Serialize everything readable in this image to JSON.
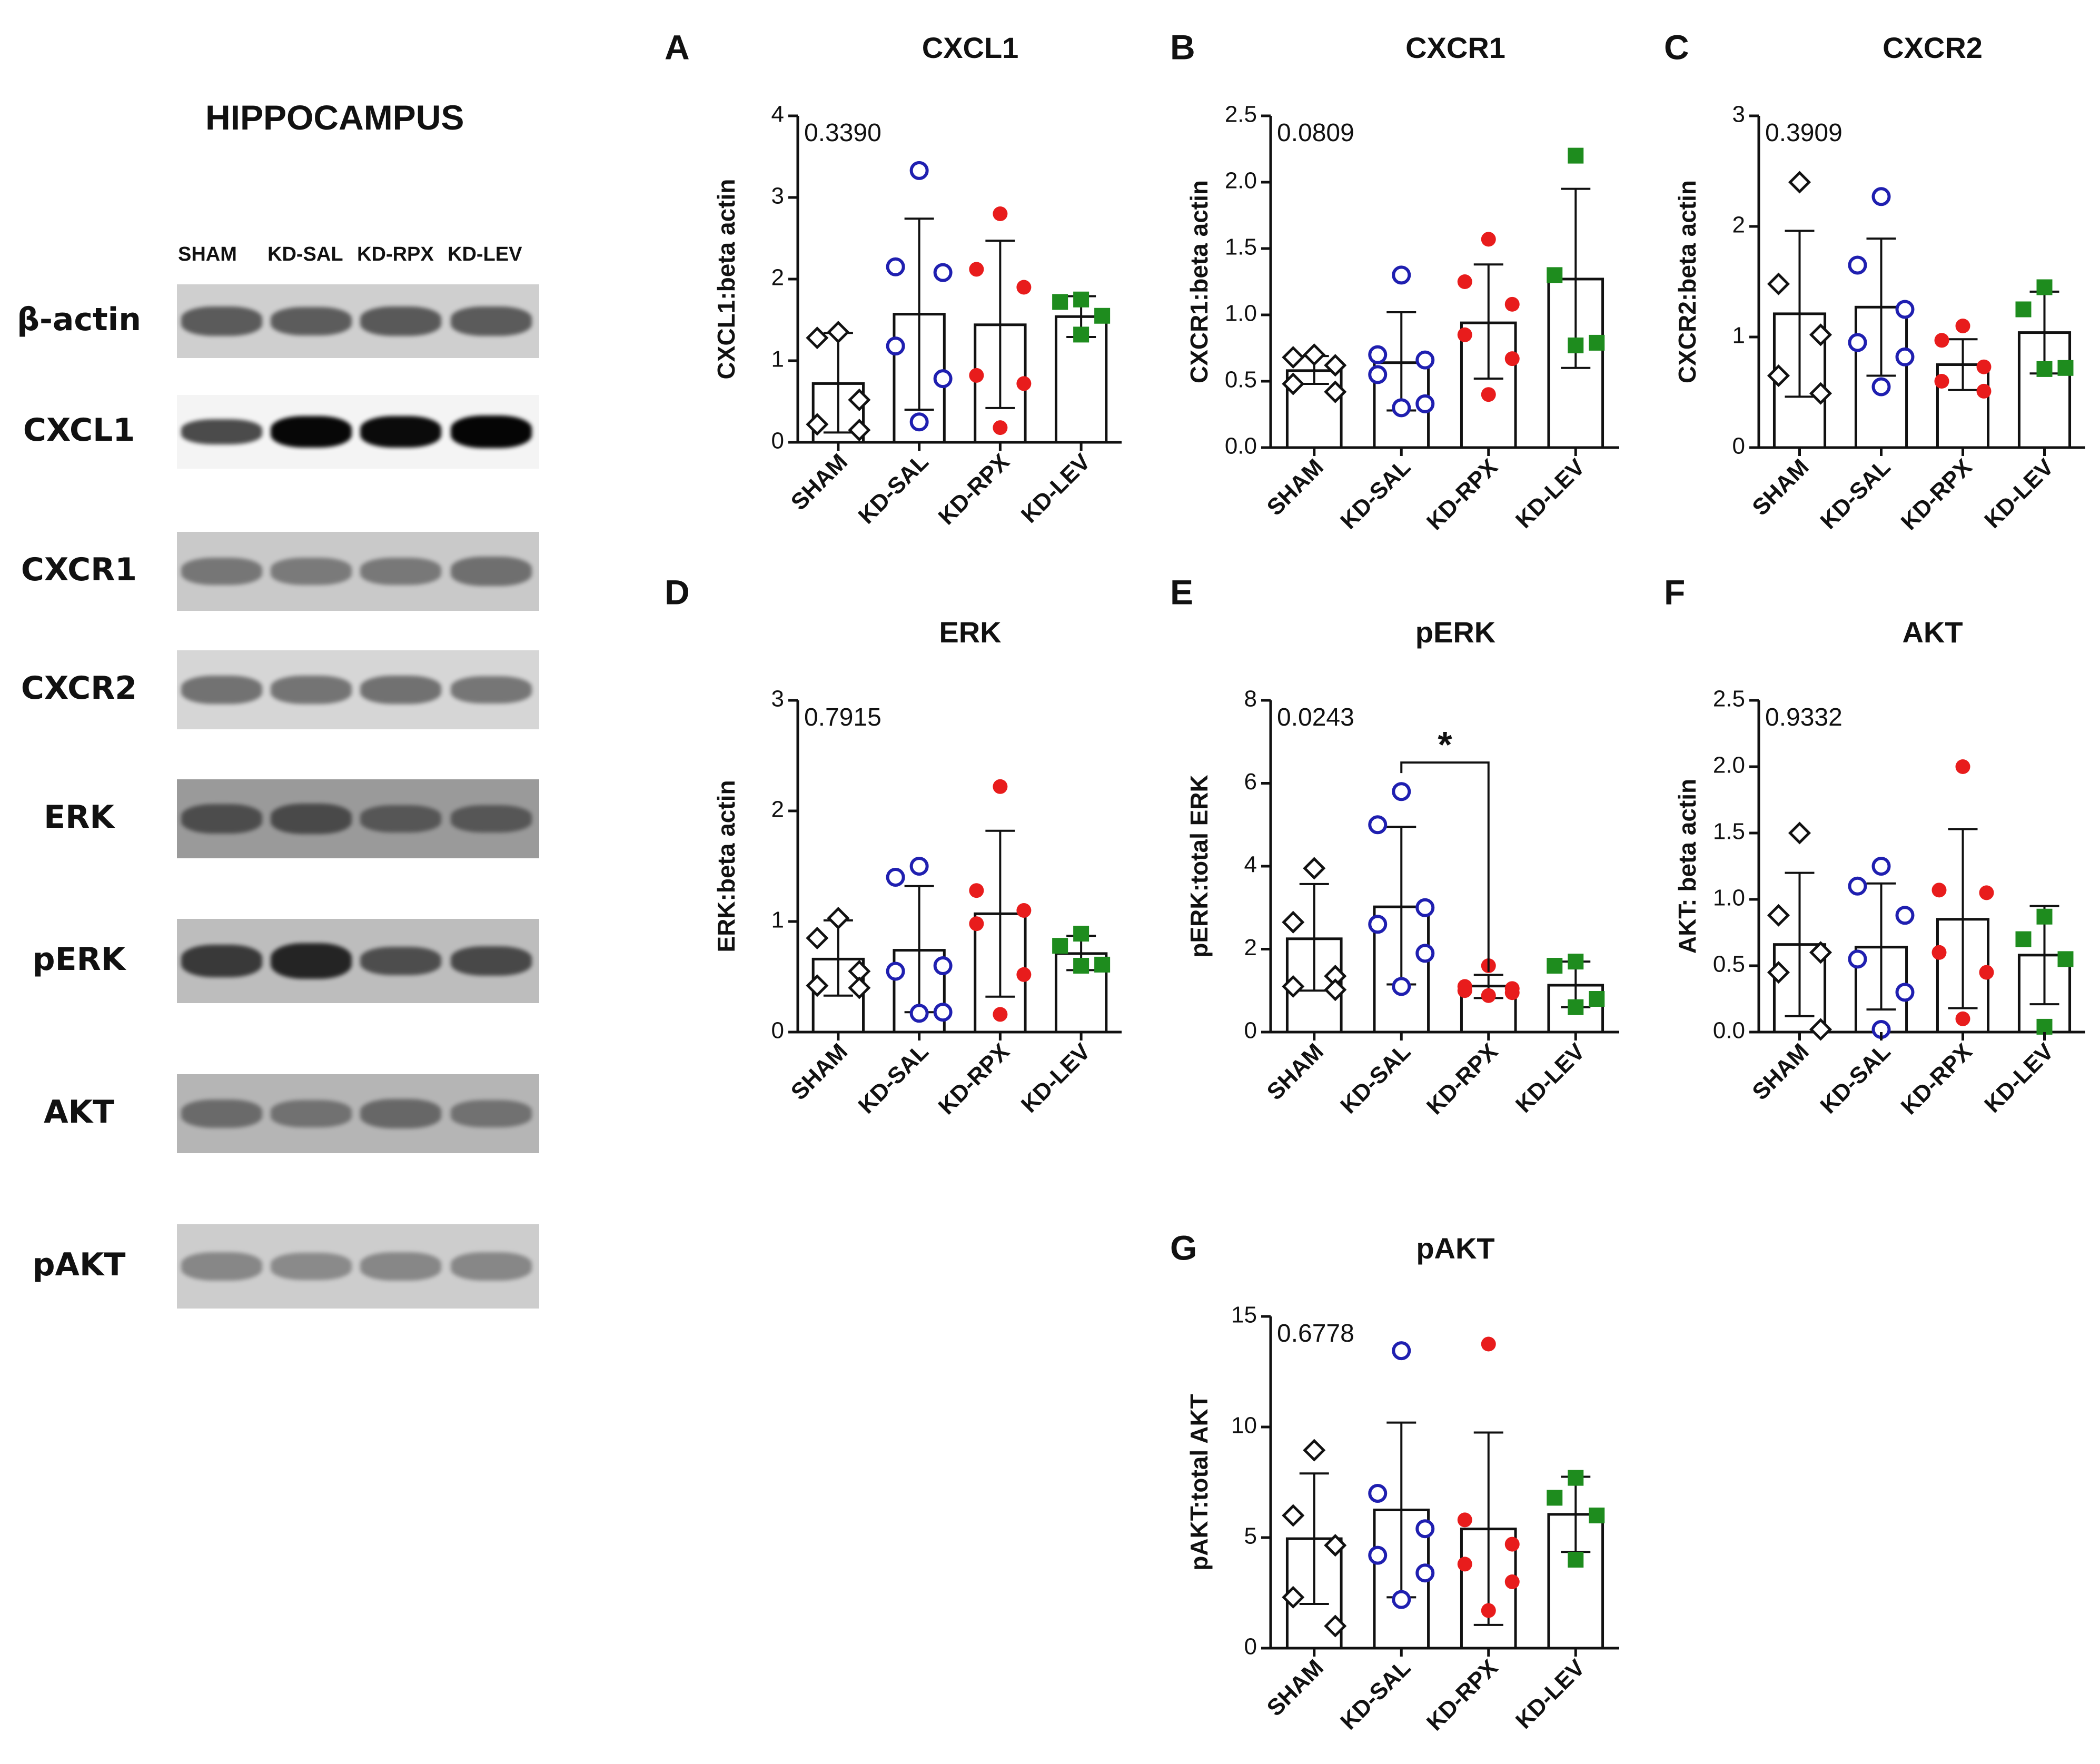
{
  "western_blot": {
    "title": "HIPPOCAMPUS",
    "lanes": [
      "SHAM",
      "KD-SAL",
      "KD-RPX",
      "KD-LEV"
    ],
    "proteins": [
      {
        "label": "β-actin",
        "bg": "#cfcfcf",
        "band_color": "#4a4a4a",
        "band_intensity": [
          0.8,
          0.78,
          0.82,
          0.8
        ]
      },
      {
        "label": "CXCL1",
        "bg": "#f4f4f4",
        "band_color": "#050505",
        "band_intensity": [
          0.55,
          0.98,
          0.96,
          1.0
        ]
      },
      {
        "label": "CXCR1",
        "bg": "#c9c9c9",
        "band_color": "#5a5a5a",
        "band_intensity": [
          0.6,
          0.55,
          0.58,
          0.7
        ]
      },
      {
        "label": "CXCR2",
        "bg": "#d6d6d6",
        "band_color": "#555555",
        "band_intensity": [
          0.65,
          0.62,
          0.66,
          0.6
        ]
      },
      {
        "label": "ERK",
        "bg": "#9a9a9a",
        "band_color": "#3a3a3a",
        "band_intensity": [
          0.7,
          0.75,
          0.55,
          0.55
        ]
      },
      {
        "label": "pERK",
        "bg": "#bdbdbd",
        "band_color": "#202020",
        "band_intensity": [
          0.75,
          0.95,
          0.55,
          0.6
        ]
      },
      {
        "label": "AKT",
        "bg": "#b5b5b5",
        "band_color": "#555555",
        "band_intensity": [
          0.65,
          0.55,
          0.7,
          0.55
        ]
      },
      {
        "label": "pAKT",
        "bg": "#cdcdcd",
        "band_color": "#6a6a6a",
        "band_intensity": [
          0.55,
          0.5,
          0.55,
          0.55
        ]
      }
    ]
  },
  "colors": {
    "SHAM": "#111111",
    "KD-SAL": "#1f1fb0",
    "KD-RPX": "#e81c1c",
    "KD-LEV": "#1e8c1e"
  },
  "chart_data": [
    {
      "panel": "A",
      "type": "bar",
      "title": "CXCL1",
      "ylabel": "CXCL1:beta actin",
      "ylim": [
        0,
        4
      ],
      "yticks": [
        "0",
        "1",
        "2",
        "3",
        "4"
      ],
      "pvalue": "0.3390",
      "categories": [
        "SHAM",
        "KD-SAL",
        "KD-RPX",
        "KD-LEV"
      ],
      "means": [
        0.72,
        1.57,
        1.44,
        1.54
      ],
      "sd_low": [
        0.12,
        0.4,
        0.42,
        1.29
      ],
      "sd_high": [
        1.34,
        2.74,
        2.47,
        1.79
      ],
      "points": [
        [
          1.35,
          1.28,
          0.52,
          0.22,
          0.15
        ],
        [
          3.33,
          2.15,
          2.08,
          1.18,
          0.78,
          0.25
        ],
        [
          2.8,
          2.12,
          1.9,
          0.82,
          0.72,
          0.18
        ],
        [
          1.75,
          1.72,
          1.55,
          1.32
        ]
      ],
      "significance": null
    },
    {
      "panel": "B",
      "type": "bar",
      "title": "CXCR1",
      "ylabel": "CXCR1:beta actin",
      "ylim": [
        0,
        2.5
      ],
      "yticks": [
        "0.0",
        "0.5",
        "1.0",
        "1.5",
        "2.0",
        "2.5"
      ],
      "pvalue": "0.0809",
      "categories": [
        "SHAM",
        "KD-SAL",
        "KD-RPX",
        "KD-LEV"
      ],
      "means": [
        0.58,
        0.64,
        0.94,
        1.27
      ],
      "sd_low": [
        0.48,
        0.28,
        0.52,
        0.6
      ],
      "sd_high": [
        0.69,
        1.02,
        1.38,
        1.95
      ],
      "points": [
        [
          0.7,
          0.68,
          0.62,
          0.48,
          0.42
        ],
        [
          1.3,
          0.7,
          0.66,
          0.55,
          0.33,
          0.3
        ],
        [
          1.57,
          1.25,
          1.08,
          0.85,
          0.67,
          0.4
        ],
        [
          2.2,
          1.3,
          0.79,
          0.77
        ]
      ],
      "significance": null
    },
    {
      "panel": "C",
      "type": "bar",
      "title": "CXCR2",
      "ylabel": "CXCR2:beta actin",
      "ylim": [
        0,
        3
      ],
      "yticks": [
        "0",
        "1",
        "2",
        "3"
      ],
      "pvalue": "0.3909",
      "categories": [
        "SHAM",
        "KD-SAL",
        "KD-RPX",
        "KD-LEV"
      ],
      "means": [
        1.21,
        1.27,
        0.75,
        1.04
      ],
      "sd_low": [
        0.46,
        0.65,
        0.52,
        0.67
      ],
      "sd_high": [
        1.96,
        1.89,
        0.98,
        1.41
      ],
      "points": [
        [
          2.4,
          1.48,
          1.02,
          0.65,
          0.49
        ],
        [
          2.27,
          1.65,
          1.25,
          0.95,
          0.82,
          0.55
        ],
        [
          1.1,
          0.97,
          0.73,
          0.6,
          0.51
        ],
        [
          1.45,
          1.25,
          0.72,
          0.71
        ]
      ],
      "significance": null
    },
    {
      "panel": "D",
      "type": "bar",
      "title": "ERK",
      "ylabel": "ERK:beta actin",
      "ylim": [
        0,
        3
      ],
      "yticks": [
        "0",
        "1",
        "2",
        "3"
      ],
      "pvalue": "0.7915",
      "categories": [
        "SHAM",
        "KD-SAL",
        "KD-RPX",
        "KD-LEV"
      ],
      "means": [
        0.66,
        0.74,
        1.07,
        0.71
      ],
      "sd_low": [
        0.33,
        0.18,
        0.32,
        0.56
      ],
      "sd_high": [
        1.01,
        1.32,
        1.82,
        0.87
      ],
      "points": [
        [
          1.03,
          0.85,
          0.55,
          0.42,
          0.4
        ],
        [
          1.5,
          1.4,
          0.6,
          0.55,
          0.18,
          0.17
        ],
        [
          2.22,
          1.28,
          1.1,
          0.98,
          0.52,
          0.16
        ],
        [
          0.89,
          0.78,
          0.61,
          0.6
        ]
      ],
      "significance": null
    },
    {
      "panel": "E",
      "type": "bar",
      "title": "pERK",
      "ylabel": "pERK:total ERK",
      "ylim": [
        0,
        8
      ],
      "yticks": [
        "0",
        "2",
        "4",
        "6",
        "8"
      ],
      "pvalue": "0.0243",
      "categories": [
        "SHAM",
        "KD-SAL",
        "KD-RPX",
        "KD-LEV"
      ],
      "means": [
        2.25,
        3.02,
        1.11,
        1.13
      ],
      "sd_low": [
        1.0,
        1.15,
        0.82,
        0.6
      ],
      "sd_high": [
        3.57,
        4.95,
        1.38,
        1.7
      ],
      "points": [
        [
          3.95,
          2.65,
          1.35,
          1.1,
          1.02
        ],
        [
          5.8,
          5.0,
          3.0,
          2.6,
          1.9,
          1.1
        ],
        [
          1.6,
          1.1,
          1.05,
          1.0,
          0.95,
          0.88
        ],
        [
          1.7,
          1.6,
          0.8,
          0.6
        ]
      ],
      "significance": {
        "label": "*",
        "from": 1,
        "to": 2,
        "at": 6.5
      }
    },
    {
      "panel": "F",
      "type": "bar",
      "title": "AKT",
      "ylabel": "AKT: beta actin",
      "ylim": [
        0,
        2.5
      ],
      "yticks": [
        "0.0",
        "0.5",
        "1.0",
        "1.5",
        "2.0",
        "2.5"
      ],
      "pvalue": "0.9332",
      "categories": [
        "SHAM",
        "KD-SAL",
        "KD-RPX",
        "KD-LEV"
      ],
      "means": [
        0.66,
        0.64,
        0.85,
        0.58
      ],
      "sd_low": [
        0.12,
        0.17,
        0.18,
        0.21
      ],
      "sd_high": [
        1.2,
        1.12,
        1.53,
        0.95
      ],
      "points": [
        [
          1.5,
          0.88,
          0.6,
          0.45,
          0.02
        ],
        [
          1.25,
          1.1,
          0.88,
          0.55,
          0.3,
          0.02
        ],
        [
          2.0,
          1.07,
          1.05,
          0.6,
          0.45,
          0.1
        ],
        [
          0.87,
          0.7,
          0.55,
          0.04
        ]
      ],
      "significance": null
    },
    {
      "panel": "G",
      "type": "bar",
      "title": "pAKT",
      "ylabel": "pAKT:total AKT",
      "ylim": [
        0,
        15
      ],
      "yticks": [
        "0",
        "5",
        "10",
        "15"
      ],
      "pvalue": "0.6778",
      "categories": [
        "SHAM",
        "KD-SAL",
        "KD-RPX",
        "KD-LEV"
      ],
      "means": [
        4.95,
        6.25,
        5.39,
        6.05
      ],
      "sd_low": [
        2.0,
        2.3,
        1.05,
        4.35
      ],
      "sd_high": [
        7.9,
        10.2,
        9.75,
        7.75
      ],
      "points": [
        [
          8.95,
          6.0,
          4.65,
          2.3,
          1.0
        ],
        [
          13.45,
          7.0,
          5.4,
          4.2,
          3.4,
          2.2
        ],
        [
          13.75,
          5.8,
          4.7,
          3.8,
          3.0,
          1.7
        ],
        [
          7.7,
          6.8,
          6.0,
          4.0
        ]
      ],
      "significance": null
    }
  ]
}
